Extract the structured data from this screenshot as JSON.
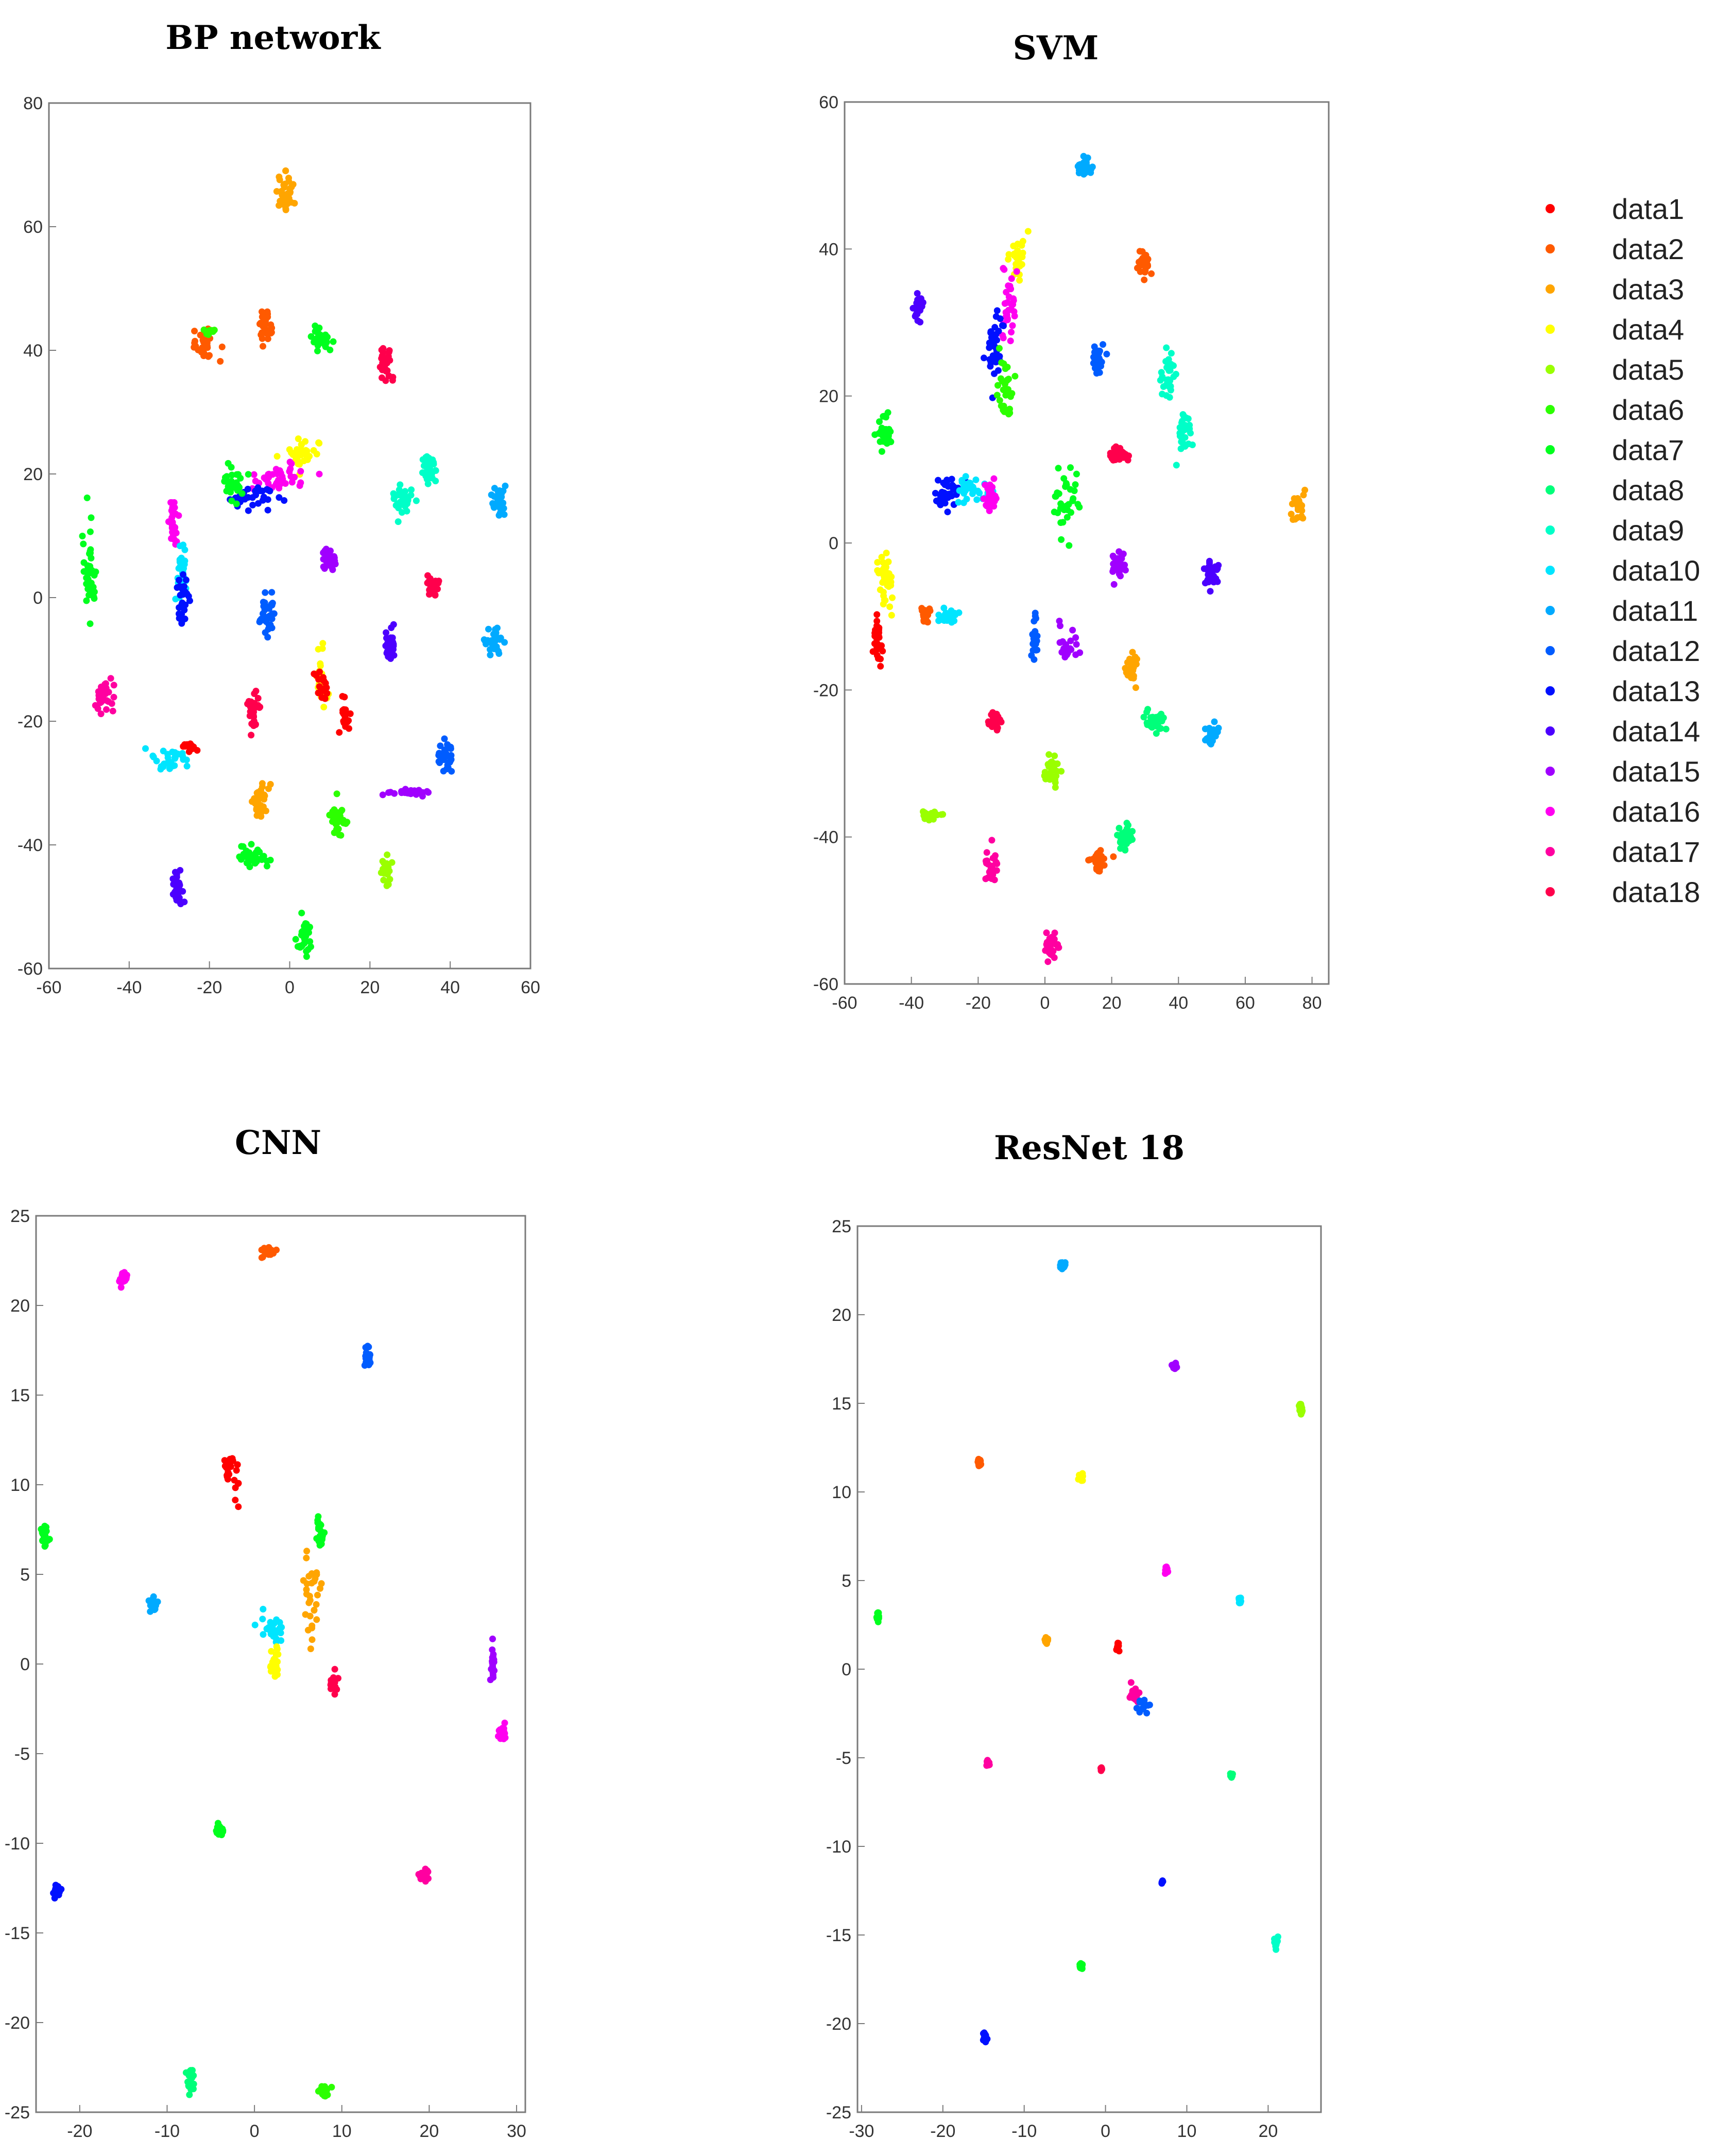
{
  "colors": [
    "#ff0000",
    "#ff5a00",
    "#ffa500",
    "#ffff00",
    "#9aff00",
    "#2cff00",
    "#00ff1e",
    "#00ff7a",
    "#00ffc8",
    "#00e5ff",
    "#00aaff",
    "#005cff",
    "#0010ff",
    "#4c00ff",
    "#a000ff",
    "#ff00f0",
    "#ff00a0",
    "#ff004c"
  ],
  "legend": [
    "data1",
    "data2",
    "data3",
    "data4",
    "data5",
    "data6",
    "data7",
    "data8",
    "data9",
    "data10",
    "data11",
    "data12",
    "data13",
    "data14",
    "data15",
    "data16",
    "data17",
    "data18"
  ],
  "chart_data": [
    {
      "type": "scatter",
      "title": "BP  network",
      "xlim": [
        -60,
        60
      ],
      "ylim": [
        -60,
        80
      ],
      "xticks": [
        -60,
        -40,
        -20,
        0,
        20,
        40,
        60
      ],
      "yticks": [
        -60,
        -40,
        -20,
        0,
        20,
        40,
        60,
        80
      ],
      "clusters": [
        {
          "s": 2,
          "x": -1,
          "y": 65,
          "sx": 1,
          "sy": 1.5,
          "n": 40
        },
        {
          "s": 1,
          "x": -21,
          "y": 41,
          "sx": 1.5,
          "sy": 1.2,
          "n": 30
        },
        {
          "s": 5,
          "x": -20,
          "y": 43,
          "sx": 0.8,
          "sy": 0.5,
          "n": 10
        },
        {
          "s": 1,
          "x": -6,
          "y": 44,
          "sx": 1,
          "sy": 1.3,
          "n": 30
        },
        {
          "s": 6,
          "x": 8,
          "y": 42,
          "sx": 1,
          "sy": 1,
          "n": 30
        },
        {
          "s": 17,
          "x": 24,
          "y": 38,
          "sx": 0.7,
          "sy": 1.5,
          "n": 30
        },
        {
          "s": 8,
          "x": 35,
          "y": 21,
          "sx": 1.2,
          "sy": 1.5,
          "n": 35
        },
        {
          "s": 8,
          "x": 28,
          "y": 16,
          "sx": 1.2,
          "sy": 1.3,
          "n": 30
        },
        {
          "s": 10,
          "x": 52,
          "y": 16,
          "sx": 0.8,
          "sy": 1.5,
          "n": 30
        },
        {
          "s": 3,
          "x": 3,
          "y": 23,
          "sx": 2,
          "sy": 1,
          "n": 40
        },
        {
          "s": 15,
          "x": -3,
          "y": 19,
          "sx": 3,
          "sy": 1,
          "n": 40
        },
        {
          "s": 12,
          "x": -8,
          "y": 16,
          "sx": 3,
          "sy": 1,
          "n": 30
        },
        {
          "s": 6,
          "x": -14,
          "y": 19,
          "sx": 1.5,
          "sy": 1.5,
          "n": 30
        },
        {
          "s": 6,
          "x": -50,
          "y": 5,
          "sx": 1,
          "sy": 4,
          "n": 40
        },
        {
          "s": 15,
          "x": -29,
          "y": 12,
          "sx": 0.6,
          "sy": 1.8,
          "n": 30
        },
        {
          "s": 9,
          "x": -27,
          "y": 5,
          "sx": 0.6,
          "sy": 2.5,
          "n": 30
        },
        {
          "s": 12,
          "x": -27,
          "y": 0,
          "sx": 0.8,
          "sy": 2,
          "n": 30
        },
        {
          "s": 14,
          "x": 10,
          "y": 6,
          "sx": 0.8,
          "sy": 1.2,
          "n": 30
        },
        {
          "s": 17,
          "x": 36,
          "y": 2,
          "sx": 1,
          "sy": 1,
          "n": 30
        },
        {
          "s": 11,
          "x": -6,
          "y": -3,
          "sx": 1,
          "sy": 1.5,
          "n": 30
        },
        {
          "s": 13,
          "x": 25,
          "y": -8,
          "sx": 0.8,
          "sy": 1.5,
          "n": 30
        },
        {
          "s": 10,
          "x": 51,
          "y": -7,
          "sx": 1.5,
          "sy": 1,
          "n": 30
        },
        {
          "s": 16,
          "x": -46,
          "y": -16,
          "sx": 1,
          "sy": 1.2,
          "n": 30
        },
        {
          "s": 17,
          "x": -9,
          "y": -18,
          "sx": 0.8,
          "sy": 1.5,
          "n": 30
        },
        {
          "s": 3,
          "x": 8,
          "y": -13,
          "sx": 0.8,
          "sy": 2.5,
          "n": 30
        },
        {
          "s": 0,
          "x": 8,
          "y": -14,
          "sx": 0.7,
          "sy": 1.5,
          "n": 20
        },
        {
          "s": 0,
          "x": 14,
          "y": -19,
          "sx": 0.7,
          "sy": 1.5,
          "n": 20
        },
        {
          "s": 9,
          "x": -30,
          "y": -26,
          "sx": 2.5,
          "sy": 1,
          "n": 30
        },
        {
          "s": 0,
          "x": -25,
          "y": -24,
          "sx": 1,
          "sy": 0.5,
          "n": 15
        },
        {
          "s": 11,
          "x": 39,
          "y": -26,
          "sx": 0.8,
          "sy": 1.3,
          "n": 30
        },
        {
          "s": 14,
          "x": 30,
          "y": -31.5,
          "sx": 3,
          "sy": 0.3,
          "n": 30
        },
        {
          "s": 2,
          "x": -7,
          "y": -33,
          "sx": 1,
          "sy": 1.3,
          "n": 30
        },
        {
          "s": 5,
          "x": 12,
          "y": -36,
          "sx": 1,
          "sy": 1.3,
          "n": 30
        },
        {
          "s": 6,
          "x": -9,
          "y": -42,
          "sx": 2,
          "sy": 0.8,
          "n": 30
        },
        {
          "s": 4,
          "x": 24,
          "y": -44,
          "sx": 0.8,
          "sy": 1.3,
          "n": 25
        },
        {
          "s": 13,
          "x": -28,
          "y": -47,
          "sx": 0.6,
          "sy": 1.5,
          "n": 30
        },
        {
          "s": 6,
          "x": 4,
          "y": -55,
          "sx": 1,
          "sy": 1.5,
          "n": 30
        }
      ]
    },
    {
      "type": "scatter",
      "title": "SVM",
      "xlim": [
        -60,
        85
      ],
      "ylim": [
        -60,
        60
      ],
      "xticks": [
        -60,
        -40,
        -20,
        0,
        20,
        40,
        60,
        80
      ],
      "yticks": [
        -60,
        -40,
        -20,
        0,
        20,
        40,
        60
      ],
      "clusters": [
        {
          "s": 10,
          "x": 12,
          "y": 51,
          "sx": 1,
          "sy": 0.8,
          "n": 30
        },
        {
          "s": 1,
          "x": 30,
          "y": 38,
          "sx": 1,
          "sy": 0.8,
          "n": 30
        },
        {
          "s": 3,
          "x": -8,
          "y": 39,
          "sx": 1,
          "sy": 1.5,
          "n": 30
        },
        {
          "s": 15,
          "x": -11,
          "y": 33,
          "sx": 1,
          "sy": 3,
          "n": 30
        },
        {
          "s": 13,
          "x": -38,
          "y": 32,
          "sx": 0.8,
          "sy": 0.8,
          "n": 30
        },
        {
          "s": 12,
          "x": -15,
          "y": 27,
          "sx": 1,
          "sy": 3,
          "n": 35
        },
        {
          "s": 5,
          "x": -12,
          "y": 20,
          "sx": 1,
          "sy": 2.5,
          "n": 30
        },
        {
          "s": 11,
          "x": 16,
          "y": 25,
          "sx": 1,
          "sy": 1,
          "n": 30
        },
        {
          "s": 8,
          "x": 37,
          "y": 23,
          "sx": 1,
          "sy": 2,
          "n": 30
        },
        {
          "s": 8,
          "x": 42,
          "y": 15,
          "sx": 1,
          "sy": 1.5,
          "n": 30
        },
        {
          "s": 6,
          "x": -48,
          "y": 15,
          "sx": 1,
          "sy": 1,
          "n": 30
        },
        {
          "s": 17,
          "x": 22,
          "y": 12,
          "sx": 1.5,
          "sy": 0.5,
          "n": 30
        },
        {
          "s": 12,
          "x": -29,
          "y": 7,
          "sx": 2,
          "sy": 1.2,
          "n": 35
        },
        {
          "s": 9,
          "x": -22,
          "y": 7,
          "sx": 2.5,
          "sy": 0.8,
          "n": 30
        },
        {
          "s": 15,
          "x": -16,
          "y": 6,
          "sx": 1,
          "sy": 1,
          "n": 30
        },
        {
          "s": 6,
          "x": 6,
          "y": 6,
          "sx": 2,
          "sy": 2.5,
          "n": 35
        },
        {
          "s": 2,
          "x": 76,
          "y": 5,
          "sx": 1,
          "sy": 1,
          "n": 30
        },
        {
          "s": 14,
          "x": 22,
          "y": -3,
          "sx": 1,
          "sy": 1,
          "n": 30
        },
        {
          "s": 13,
          "x": 50,
          "y": -4,
          "sx": 1,
          "sy": 1,
          "n": 30
        },
        {
          "s": 3,
          "x": -48,
          "y": -5,
          "sx": 1.2,
          "sy": 2,
          "n": 35
        },
        {
          "s": 0,
          "x": -50,
          "y": -13,
          "sx": 0.7,
          "sy": 1.5,
          "n": 30
        },
        {
          "s": 1,
          "x": -36,
          "y": -10,
          "sx": 1,
          "sy": 0.8,
          "n": 20
        },
        {
          "s": 9,
          "x": -30,
          "y": -10,
          "sx": 2,
          "sy": 0.5,
          "n": 25
        },
        {
          "s": 11,
          "x": -3,
          "y": -13,
          "sx": 0.4,
          "sy": 1.3,
          "n": 25
        },
        {
          "s": 14,
          "x": 7,
          "y": -14,
          "sx": 1.5,
          "sy": 1.5,
          "n": 25
        },
        {
          "s": 2,
          "x": 26,
          "y": -17,
          "sx": 1,
          "sy": 1.2,
          "n": 30
        },
        {
          "s": 17,
          "x": -15,
          "y": -24,
          "sx": 1,
          "sy": 0.6,
          "n": 30
        },
        {
          "s": 7,
          "x": 33,
          "y": -24,
          "sx": 1.5,
          "sy": 0.8,
          "n": 30
        },
        {
          "s": 10,
          "x": 50,
          "y": -26,
          "sx": 1,
          "sy": 0.8,
          "n": 30
        },
        {
          "s": 4,
          "x": 2,
          "y": -31,
          "sx": 1,
          "sy": 1,
          "n": 30
        },
        {
          "s": 4,
          "x": -34,
          "y": -37,
          "sx": 1.5,
          "sy": 0.4,
          "n": 20
        },
        {
          "s": 7,
          "x": 24,
          "y": -40,
          "sx": 1,
          "sy": 1,
          "n": 30
        },
        {
          "s": 1,
          "x": 16,
          "y": -43,
          "sx": 1.5,
          "sy": 0.6,
          "n": 30
        },
        {
          "s": 16,
          "x": -16,
          "y": -44,
          "sx": 0.8,
          "sy": 1.2,
          "n": 30
        },
        {
          "s": 16,
          "x": 2,
          "y": -55,
          "sx": 1,
          "sy": 0.8,
          "n": 30
        }
      ]
    },
    {
      "type": "scatter",
      "title": "CNN",
      "xlim": [
        -25,
        31
      ],
      "ylim": [
        -25,
        25
      ],
      "xticks": [
        -20,
        -10,
        0,
        10,
        20,
        30
      ],
      "yticks": [
        -25,
        -20,
        -15,
        -10,
        -5,
        0,
        5,
        10,
        15,
        20,
        25
      ],
      "clusters": [
        {
          "s": 1,
          "x": 1.5,
          "y": 23,
          "sx": 0.4,
          "sy": 0.2,
          "n": 25
        },
        {
          "s": 15,
          "x": -15,
          "y": 21.5,
          "sx": 0.2,
          "sy": 0.2,
          "n": 25
        },
        {
          "s": 11,
          "x": 13,
          "y": 17,
          "sx": 0.2,
          "sy": 0.4,
          "n": 25
        },
        {
          "s": 0,
          "x": -3,
          "y": 11,
          "sx": 0.3,
          "sy": 0.3,
          "n": 20
        },
        {
          "s": 0,
          "x": -2,
          "y": 10,
          "sx": 0.4,
          "sy": 0.5,
          "n": 8
        },
        {
          "s": 6,
          "x": -24,
          "y": 7.2,
          "sx": 0.2,
          "sy": 0.3,
          "n": 25
        },
        {
          "s": 6,
          "x": 7.5,
          "y": 7.3,
          "sx": 0.2,
          "sy": 0.4,
          "n": 25
        },
        {
          "s": 2,
          "x": 6.5,
          "y": 3.5,
          "sx": 0.5,
          "sy": 1.5,
          "n": 30
        },
        {
          "s": 10,
          "x": -11.5,
          "y": 3.3,
          "sx": 0.2,
          "sy": 0.2,
          "n": 25
        },
        {
          "s": 9,
          "x": 2,
          "y": 2,
          "sx": 0.6,
          "sy": 0.4,
          "n": 25
        },
        {
          "s": 3,
          "x": 2.5,
          "y": 0,
          "sx": 0.3,
          "sy": 0.6,
          "n": 20
        },
        {
          "s": 17,
          "x": 9,
          "y": -1,
          "sx": 0.3,
          "sy": 0.3,
          "n": 20
        },
        {
          "s": 14,
          "x": 27.3,
          "y": 0,
          "sx": 0.1,
          "sy": 0.6,
          "n": 20
        },
        {
          "s": 15,
          "x": 28.3,
          "y": -3.8,
          "sx": 0.2,
          "sy": 0.2,
          "n": 25
        },
        {
          "s": 6,
          "x": -4,
          "y": -9.3,
          "sx": 0.2,
          "sy": 0.2,
          "n": 25
        },
        {
          "s": 16,
          "x": 19.5,
          "y": -11.7,
          "sx": 0.3,
          "sy": 0.2,
          "n": 25
        },
        {
          "s": 12,
          "x": -22.5,
          "y": -12.6,
          "sx": 0.2,
          "sy": 0.2,
          "n": 25
        },
        {
          "s": 7,
          "x": -7.3,
          "y": -23.2,
          "sx": 0.2,
          "sy": 0.4,
          "n": 25
        },
        {
          "s": 5,
          "x": 8,
          "y": -23.8,
          "sx": 0.3,
          "sy": 0.2,
          "n": 25
        }
      ]
    },
    {
      "type": "scatter",
      "title": "ResNet 18",
      "xlim": [
        -30.5,
        26.5
      ],
      "ylim": [
        -25,
        25
      ],
      "xticks": [
        -30,
        -20,
        -10,
        0,
        10,
        20
      ],
      "yticks": [
        -25,
        -20,
        -15,
        -10,
        -5,
        0,
        5,
        10,
        15,
        20,
        25
      ],
      "clusters": [
        {
          "s": 10,
          "x": -5.3,
          "y": 22.8,
          "sx": 0.15,
          "sy": 0.1,
          "n": 20
        },
        {
          "s": 14,
          "x": 8.5,
          "y": 17.1,
          "sx": 0.1,
          "sy": 0.1,
          "n": 20
        },
        {
          "s": 4,
          "x": 24,
          "y": 14.7,
          "sx": 0.1,
          "sy": 0.15,
          "n": 20
        },
        {
          "s": 1,
          "x": -15.5,
          "y": 11.7,
          "sx": 0.1,
          "sy": 0.1,
          "n": 20
        },
        {
          "s": 3,
          "x": -3,
          "y": 10.8,
          "sx": 0.1,
          "sy": 0.1,
          "n": 20
        },
        {
          "s": 15,
          "x": 7.5,
          "y": 5.6,
          "sx": 0.1,
          "sy": 0.1,
          "n": 15
        },
        {
          "s": 9,
          "x": 16.5,
          "y": 3.8,
          "sx": 0.1,
          "sy": 0.1,
          "n": 15
        },
        {
          "s": 6,
          "x": -28,
          "y": 2.9,
          "sx": 0.1,
          "sy": 0.15,
          "n": 20
        },
        {
          "s": 2,
          "x": -7.3,
          "y": 1.6,
          "sx": 0.1,
          "sy": 0.1,
          "n": 20
        },
        {
          "s": 0,
          "x": 1.5,
          "y": 1.2,
          "sx": 0.1,
          "sy": 0.15,
          "n": 15
        },
        {
          "s": 16,
          "x": 3.5,
          "y": -1.5,
          "sx": 0.3,
          "sy": 0.3,
          "n": 15
        },
        {
          "s": 11,
          "x": 4.5,
          "y": -2,
          "sx": 0.4,
          "sy": 0.2,
          "n": 15
        },
        {
          "s": 16,
          "x": -14.5,
          "y": -5.3,
          "sx": 0.1,
          "sy": 0.1,
          "n": 20
        },
        {
          "s": 17,
          "x": -0.5,
          "y": -5.6,
          "sx": 0.05,
          "sy": 0.05,
          "n": 8
        },
        {
          "s": 7,
          "x": 15.5,
          "y": -6,
          "sx": 0.1,
          "sy": 0.1,
          "n": 15
        },
        {
          "s": 12,
          "x": 7,
          "y": -12,
          "sx": 0.05,
          "sy": 0.05,
          "n": 5
        },
        {
          "s": 8,
          "x": 21,
          "y": -15.4,
          "sx": 0.1,
          "sy": 0.15,
          "n": 20
        },
        {
          "s": 6,
          "x": -3,
          "y": -16.8,
          "sx": 0.1,
          "sy": 0.1,
          "n": 20
        },
        {
          "s": 12,
          "x": -14.8,
          "y": -20.8,
          "sx": 0.15,
          "sy": 0.15,
          "n": 20
        }
      ]
    }
  ]
}
